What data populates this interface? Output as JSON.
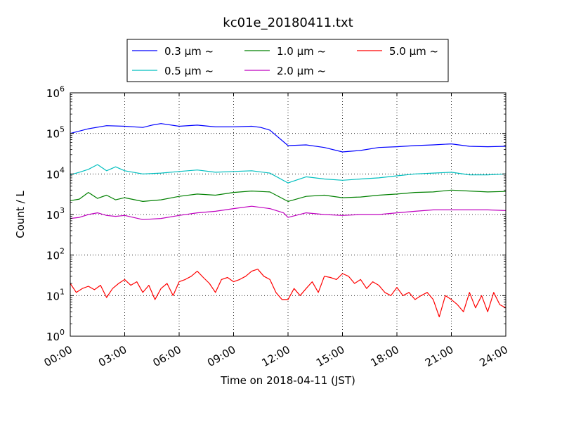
{
  "chart_data": {
    "type": "line",
    "title": "kc01e_20180411.txt",
    "xlabel": "Time on 2018-04-11 (JST)",
    "ylabel": "Count / L",
    "y_scale": "log",
    "ylim": [
      1,
      1000000
    ],
    "y_ticks": [
      {
        "base": "10",
        "exp": "0",
        "value": 1
      },
      {
        "base": "10",
        "exp": "1",
        "value": 10
      },
      {
        "base": "10",
        "exp": "2",
        "value": 100
      },
      {
        "base": "10",
        "exp": "3",
        "value": 1000
      },
      {
        "base": "10",
        "exp": "4",
        "value": 10000
      },
      {
        "base": "10",
        "exp": "5",
        "value": 100000
      },
      {
        "base": "10",
        "exp": "6",
        "value": 1000000
      }
    ],
    "x_ticks": [
      "00:00",
      "03:00",
      "06:00",
      "09:00",
      "12:00",
      "15:00",
      "18:00",
      "21:00",
      "24:00"
    ],
    "xlim": [
      "00:00",
      "24:00"
    ],
    "grid": true,
    "legend_position": "top-center",
    "series": [
      {
        "name": "0.3 μm ~",
        "color": "#0000ff",
        "x": [
          "00:00",
          "01:00",
          "02:00",
          "03:00",
          "04:00",
          "04:30",
          "05:00",
          "06:00",
          "07:00",
          "08:00",
          "09:00",
          "10:00",
          "10:30",
          "11:00",
          "12:00",
          "13:00",
          "14:00",
          "15:00",
          "16:00",
          "17:00",
          "18:00",
          "19:00",
          "20:00",
          "21:00",
          "22:00",
          "23:00",
          "24:00"
        ],
        "values": [
          100000,
          130000,
          155000,
          150000,
          140000,
          160000,
          175000,
          150000,
          160000,
          145000,
          145000,
          150000,
          140000,
          120000,
          50000,
          52000,
          45000,
          35000,
          38000,
          45000,
          47000,
          50000,
          52000,
          55000,
          48000,
          47000,
          48000
        ]
      },
      {
        "name": "0.5 μm ~",
        "color": "#00bfbf",
        "x": [
          "00:00",
          "00:30",
          "01:00",
          "01:30",
          "02:00",
          "02:30",
          "03:00",
          "04:00",
          "05:00",
          "06:00",
          "07:00",
          "08:00",
          "09:00",
          "10:00",
          "11:00",
          "12:00",
          "13:00",
          "14:00",
          "15:00",
          "16:00",
          "17:00",
          "18:00",
          "19:00",
          "20:00",
          "21:00",
          "22:00",
          "23:00",
          "24:00"
        ],
        "values": [
          9500,
          11000,
          13000,
          17000,
          12000,
          15000,
          12000,
          10000,
          10500,
          11500,
          12500,
          11000,
          11500,
          12000,
          10500,
          6000,
          8500,
          7500,
          7000,
          7500,
          8000,
          9000,
          10000,
          10500,
          11000,
          9500,
          9500,
          10000
        ]
      },
      {
        "name": "1.0 μm ~",
        "color": "#008000",
        "x": [
          "00:00",
          "00:30",
          "01:00",
          "01:30",
          "02:00",
          "02:30",
          "03:00",
          "04:00",
          "05:00",
          "06:00",
          "07:00",
          "08:00",
          "09:00",
          "10:00",
          "11:00",
          "12:00",
          "13:00",
          "14:00",
          "15:00",
          "16:00",
          "17:00",
          "18:00",
          "19:00",
          "20:00",
          "21:00",
          "22:00",
          "23:00",
          "24:00"
        ],
        "values": [
          2200,
          2400,
          3500,
          2500,
          3000,
          2300,
          2600,
          2100,
          2300,
          2800,
          3200,
          3000,
          3500,
          3800,
          3600,
          2100,
          2800,
          3000,
          2600,
          2700,
          3000,
          3200,
          3500,
          3600,
          4000,
          3800,
          3600,
          3700
        ]
      },
      {
        "name": "2.0 μm ~",
        "color": "#bf00bf",
        "x": [
          "00:00",
          "00:30",
          "01:00",
          "01:30",
          "02:00",
          "02:30",
          "03:00",
          "04:00",
          "05:00",
          "06:00",
          "07:00",
          "08:00",
          "09:00",
          "10:00",
          "11:00",
          "11:45",
          "12:00",
          "13:00",
          "14:00",
          "15:00",
          "16:00",
          "17:00",
          "18:00",
          "19:00",
          "20:00",
          "21:00",
          "22:00",
          "23:00",
          "24:00"
        ],
        "values": [
          800,
          850,
          1000,
          1100,
          950,
          900,
          950,
          750,
          800,
          950,
          1100,
          1200,
          1400,
          1600,
          1400,
          1100,
          850,
          1100,
          1000,
          950,
          1000,
          1000,
          1100,
          1200,
          1300,
          1300,
          1300,
          1300,
          1250
        ]
      },
      {
        "name": "5.0 μm ~",
        "color": "#ff0000",
        "x": [
          "00:00",
          "00:20",
          "00:40",
          "01:00",
          "01:20",
          "01:40",
          "02:00",
          "02:20",
          "02:40",
          "03:00",
          "03:20",
          "03:40",
          "04:00",
          "04:20",
          "04:40",
          "05:00",
          "05:20",
          "05:40",
          "06:00",
          "06:20",
          "06:40",
          "07:00",
          "07:20",
          "07:40",
          "08:00",
          "08:20",
          "08:40",
          "09:00",
          "09:20",
          "09:40",
          "10:00",
          "10:20",
          "10:40",
          "11:00",
          "11:20",
          "11:40",
          "12:00",
          "12:20",
          "12:40",
          "13:00",
          "13:20",
          "13:40",
          "14:00",
          "14:20",
          "14:40",
          "15:00",
          "15:20",
          "15:40",
          "16:00",
          "16:20",
          "16:40",
          "17:00",
          "17:20",
          "17:40",
          "18:00",
          "18:20",
          "18:40",
          "19:00",
          "19:20",
          "19:40",
          "20:00",
          "20:20",
          "20:40",
          "21:00",
          "21:20",
          "21:40",
          "22:00",
          "22:20",
          "22:40",
          "23:00",
          "23:20",
          "23:40",
          "24:00"
        ],
        "values": [
          20,
          12,
          15,
          17,
          14,
          18,
          9,
          15,
          20,
          25,
          18,
          22,
          12,
          18,
          8,
          15,
          20,
          10,
          22,
          25,
          30,
          40,
          28,
          20,
          12,
          25,
          28,
          22,
          25,
          30,
          40,
          45,
          30,
          25,
          12,
          8,
          8,
          15,
          10,
          15,
          22,
          12,
          30,
          28,
          25,
          35,
          30,
          20,
          25,
          15,
          22,
          18,
          12,
          10,
          16,
          10,
          12,
          8,
          10,
          12,
          8,
          3,
          10,
          8,
          6,
          4,
          12,
          5,
          10,
          4,
          12,
          6,
          5
        ]
      }
    ]
  }
}
